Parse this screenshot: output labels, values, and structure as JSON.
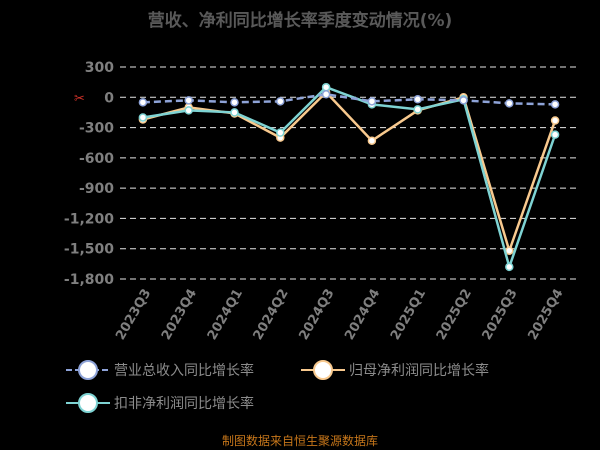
{
  "chart_data": {
    "type": "line",
    "title": "营收、净利同比增长率季度变动情况(%)",
    "footer": "制图数据来自恒生聚源数据库",
    "categories": [
      "2023Q3",
      "2023Q4",
      "2024Q1",
      "2024Q2",
      "2024Q3",
      "2024Q4",
      "2025Q1",
      "2025Q2",
      "2025Q3",
      "2025Q4"
    ],
    "ylim": [
      -1800,
      300
    ],
    "yticks": [
      300,
      0,
      -300,
      -600,
      -900,
      -1200,
      -1500,
      -1800
    ],
    "ytick_labels": [
      "300",
      "0",
      "-300",
      "-600",
      "-900",
      "-1,200",
      "-1,500",
      "-1,800"
    ],
    "grid": true,
    "legend_position": "bottom",
    "series": [
      {
        "name": "营业总收入同比增长率",
        "color": "#8ea3d8",
        "dashed": true,
        "values": [
          -50,
          -30,
          -50,
          -40,
          30,
          -40,
          -20,
          -30,
          -60,
          -70
        ]
      },
      {
        "name": "归母净利润同比增长率",
        "color": "#f8c98e",
        "dashed": false,
        "values": [
          -220,
          -100,
          -160,
          -400,
          50,
          -430,
          -130,
          0,
          -1520,
          -230
        ]
      },
      {
        "name": "扣非净利润同比增长率",
        "color": "#7ed3d3",
        "dashed": false,
        "values": [
          -200,
          -130,
          -150,
          -350,
          100,
          -70,
          -120,
          -20,
          -1680,
          -370
        ]
      }
    ]
  },
  "icons": {
    "zero_marker": "scissors-icon"
  }
}
